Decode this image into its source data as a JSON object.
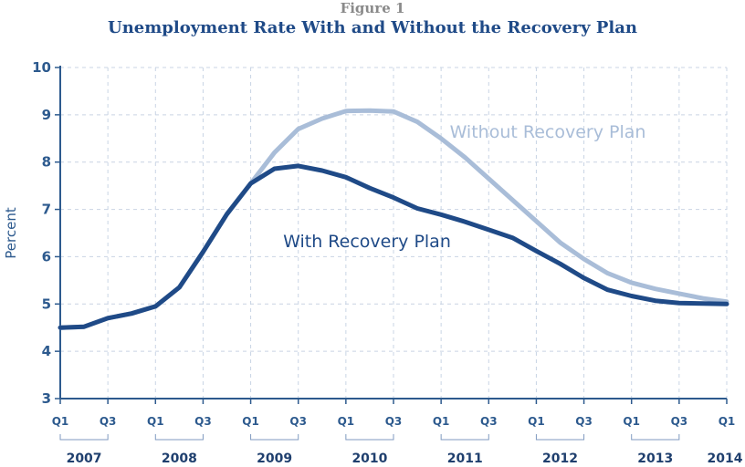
{
  "figure_label": "Figure 1",
  "chart_data": {
    "type": "line",
    "title": "Unemployment Rate With and Without the Recovery Plan",
    "xlabel": "",
    "ylabel": "Percent",
    "ylim": [
      3,
      10
    ],
    "yticks": [
      "3",
      "4",
      "5",
      "6",
      "7",
      "8",
      "9",
      "10"
    ],
    "quarter_ticks": [
      "Q1",
      "Q3",
      "Q1",
      "Q3",
      "Q1",
      "Q3",
      "Q1",
      "Q3",
      "Q1",
      "Q3",
      "Q1",
      "Q3",
      "Q1",
      "Q3",
      "Q1"
    ],
    "year_labels": [
      "2007",
      "2008",
      "2009",
      "2010",
      "2011",
      "2012",
      "2013",
      "2014"
    ],
    "x_quarters": [
      "2007Q1",
      "2007Q2",
      "2007Q3",
      "2007Q4",
      "2008Q1",
      "2008Q2",
      "2008Q3",
      "2008Q4",
      "2009Q1",
      "2009Q2",
      "2009Q3",
      "2009Q4",
      "2010Q1",
      "2010Q2",
      "2010Q3",
      "2010Q4",
      "2011Q1",
      "2011Q2",
      "2011Q3",
      "2011Q4",
      "2012Q1",
      "2012Q2",
      "2012Q3",
      "2012Q4",
      "2013Q1",
      "2013Q2",
      "2013Q3",
      "2013Q4",
      "2014Q1"
    ],
    "grid": true,
    "series": [
      {
        "name": "Without Recovery Plan",
        "color": "#a9bdd8",
        "values": [
          4.5,
          4.52,
          4.7,
          4.8,
          4.95,
          5.35,
          6.1,
          6.9,
          7.55,
          8.2,
          8.7,
          8.92,
          9.08,
          9.09,
          9.07,
          8.85,
          8.5,
          8.1,
          7.65,
          7.2,
          6.75,
          6.3,
          5.95,
          5.65,
          5.45,
          5.32,
          5.22,
          5.12,
          5.05
        ]
      },
      {
        "name": "With Recovery Plan",
        "color": "#1f4a87",
        "values": [
          4.5,
          4.52,
          4.7,
          4.8,
          4.95,
          5.35,
          6.1,
          6.9,
          7.55,
          7.86,
          7.92,
          7.82,
          7.68,
          7.45,
          7.25,
          7.02,
          6.89,
          6.74,
          6.57,
          6.4,
          6.12,
          5.85,
          5.55,
          5.3,
          5.17,
          5.07,
          5.02,
          5.01,
          5.0
        ]
      }
    ],
    "annotations": [
      {
        "text": "Without Recovery Plan",
        "series": 0
      },
      {
        "text": "With Recovery Plan",
        "series": 1
      }
    ]
  }
}
